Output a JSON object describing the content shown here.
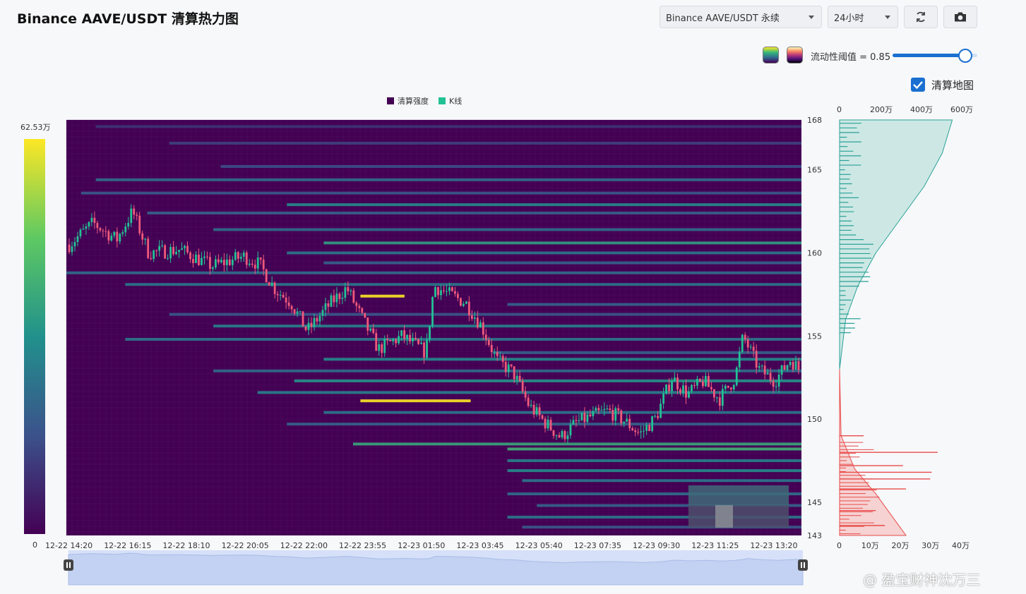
{
  "title": "Binance AAVE/USDT 清算热力图",
  "controls": {
    "symbol": "Binance AAVE/USDT 永续",
    "period": "24小时",
    "threshold_label": "流动性阈值 = 0.85",
    "threshold_value": 0.85,
    "map_label": "清算地图",
    "map_checked": true
  },
  "icons": {
    "refresh": "refresh-icon",
    "camera": "camera-icon",
    "checkbox": "checkmark-icon"
  },
  "watermark": "@ 盈宝财神沈万三",
  "colors": {
    "heat_bg": "#440154",
    "candle_up": "#23c294",
    "candle_down": "#ef5a7a",
    "short_profile": "#2aa198",
    "long_profile": "#e84b4b"
  },
  "chart_data": {
    "type": "heatmap",
    "legend": [
      {
        "name": "清算强度",
        "color": "#440154"
      },
      {
        "name": "K线",
        "color": "#23c294"
      }
    ],
    "colorbar": {
      "max_label": "62.53万",
      "min_label": "0",
      "max": 625300,
      "min": 0
    },
    "x_ticks": [
      "12-22 14:20",
      "12-22 16:15",
      "12-22 18:10",
      "12-22 20:05",
      "12-22 22:00",
      "12-22 23:55",
      "12-23 01:50",
      "12-23 03:45",
      "12-23 05:40",
      "12-23 07:35",
      "12-23 09:30",
      "12-23 11:25",
      "12-23 13:20"
    ],
    "y_ticks": [
      168,
      165,
      160,
      155,
      150,
      145,
      143
    ],
    "ylim": [
      143,
      168
    ],
    "price_key_points": [
      {
        "t": 0,
        "p": 160.5
      },
      {
        "t": 3,
        "p": 161.8
      },
      {
        "t": 6,
        "p": 160.8
      },
      {
        "t": 8,
        "p": 162.5
      },
      {
        "t": 10,
        "p": 160.0
      },
      {
        "t": 14,
        "p": 160.2
      },
      {
        "t": 18,
        "p": 159.2
      },
      {
        "t": 22,
        "p": 159.8
      },
      {
        "t": 24,
        "p": 159.3
      },
      {
        "t": 26,
        "p": 157.8
      },
      {
        "t": 28,
        "p": 157.0
      },
      {
        "t": 30,
        "p": 155.3
      },
      {
        "t": 33,
        "p": 157.0
      },
      {
        "t": 35,
        "p": 157.9
      },
      {
        "t": 37,
        "p": 156.0
      },
      {
        "t": 39,
        "p": 154.2
      },
      {
        "t": 42,
        "p": 155.0
      },
      {
        "t": 45,
        "p": 154.0
      },
      {
        "t": 46,
        "p": 158.0
      },
      {
        "t": 48,
        "p": 157.5
      },
      {
        "t": 50,
        "p": 157.0
      },
      {
        "t": 52,
        "p": 155.6
      },
      {
        "t": 54,
        "p": 153.5
      },
      {
        "t": 56,
        "p": 152.8
      },
      {
        "t": 58,
        "p": 150.8
      },
      {
        "t": 60,
        "p": 149.8
      },
      {
        "t": 62,
        "p": 148.9
      },
      {
        "t": 64,
        "p": 149.8
      },
      {
        "t": 66,
        "p": 150.2
      },
      {
        "t": 68,
        "p": 150.5
      },
      {
        "t": 70,
        "p": 149.9
      },
      {
        "t": 72,
        "p": 149.1
      },
      {
        "t": 74,
        "p": 150.1
      },
      {
        "t": 76,
        "p": 152.5
      },
      {
        "t": 78,
        "p": 151.5
      },
      {
        "t": 80,
        "p": 152.3
      },
      {
        "t": 82,
        "p": 151.2
      },
      {
        "t": 84,
        "p": 152.5
      },
      {
        "t": 85,
        "p": 155.0
      },
      {
        "t": 87,
        "p": 153.0
      },
      {
        "t": 89,
        "p": 152.3
      },
      {
        "t": 91,
        "p": 153.6
      },
      {
        "t": 92,
        "p": 153.0
      }
    ],
    "liquidation_bands": [
      {
        "price": 167.6,
        "from": 0.04,
        "intensity": 0.2
      },
      {
        "price": 166.6,
        "from": 0.14,
        "intensity": 0.25
      },
      {
        "price": 165.2,
        "from": 0.21,
        "intensity": 0.3
      },
      {
        "price": 164.4,
        "from": 0.04,
        "intensity": 0.45
      },
      {
        "price": 163.6,
        "from": 0.02,
        "intensity": 0.35
      },
      {
        "price": 162.9,
        "from": 0.3,
        "intensity": 0.6
      },
      {
        "price": 162.4,
        "from": 0.11,
        "intensity": 0.4
      },
      {
        "price": 161.4,
        "from": 0.2,
        "intensity": 0.45
      },
      {
        "price": 160.6,
        "from": 0.35,
        "intensity": 0.7
      },
      {
        "price": 160.0,
        "from": 0.3,
        "intensity": 0.5
      },
      {
        "price": 159.4,
        "from": 0.35,
        "intensity": 0.4
      },
      {
        "price": 158.8,
        "from": 0.0,
        "intensity": 0.45
      },
      {
        "price": 158.1,
        "from": 0.08,
        "intensity": 0.5
      },
      {
        "price": 157.4,
        "from": 0.4,
        "intensity": 1.0,
        "to": 0.46
      },
      {
        "price": 156.9,
        "from": 0.6,
        "intensity": 0.4
      },
      {
        "price": 156.3,
        "from": 0.14,
        "intensity": 0.35
      },
      {
        "price": 155.6,
        "from": 0.2,
        "intensity": 0.55
      },
      {
        "price": 154.8,
        "from": 0.08,
        "intensity": 0.5
      },
      {
        "price": 154.0,
        "from": 0.58,
        "intensity": 0.4
      },
      {
        "price": 153.6,
        "from": 0.35,
        "intensity": 0.6
      },
      {
        "price": 152.9,
        "from": 0.2,
        "intensity": 0.45
      },
      {
        "price": 152.3,
        "from": 0.31,
        "intensity": 0.65
      },
      {
        "price": 151.6,
        "from": 0.26,
        "intensity": 0.55
      },
      {
        "price": 151.1,
        "from": 0.4,
        "intensity": 1.0,
        "to": 0.55
      },
      {
        "price": 150.4,
        "from": 0.35,
        "intensity": 0.5
      },
      {
        "price": 149.7,
        "from": 0.3,
        "intensity": 0.4
      },
      {
        "price": 148.5,
        "from": 0.39,
        "intensity": 0.75
      },
      {
        "price": 148.2,
        "from": 0.6,
        "intensity": 0.8
      },
      {
        "price": 147.5,
        "from": 0.6,
        "intensity": 0.55
      },
      {
        "price": 146.9,
        "from": 0.6,
        "intensity": 0.6
      },
      {
        "price": 146.3,
        "from": 0.62,
        "intensity": 0.5
      },
      {
        "price": 145.5,
        "from": 0.6,
        "intensity": 0.45
      },
      {
        "price": 144.8,
        "from": 0.64,
        "intensity": 0.4
      },
      {
        "price": 144.1,
        "from": 0.6,
        "intensity": 0.5
      },
      {
        "price": 143.5,
        "from": 0.62,
        "intensity": 0.35
      }
    ],
    "short_profile": {
      "axis_ticks": [
        "0",
        "200万",
        "400万",
        "600万"
      ],
      "axis_max": 6000000,
      "cumulative": [
        {
          "p": 168,
          "v": 5600000
        },
        {
          "p": 166,
          "v": 5100000
        },
        {
          "p": 164,
          "v": 4200000
        },
        {
          "p": 162,
          "v": 3000000
        },
        {
          "p": 160,
          "v": 1800000
        },
        {
          "p": 158,
          "v": 900000
        },
        {
          "p": 156,
          "v": 300000
        },
        {
          "p": 153,
          "v": 0
        }
      ]
    },
    "long_profile": {
      "axis_ticks": [
        "0",
        "10万",
        "20万",
        "30万",
        "40万"
      ],
      "axis_max": 400000,
      "cumulative": [
        {
          "p": 153,
          "v": 0
        },
        {
          "p": 149,
          "v": 5000
        },
        {
          "p": 147,
          "v": 50000
        },
        {
          "p": 145.5,
          "v": 120000
        },
        {
          "p": 144,
          "v": 180000
        },
        {
          "p": 143,
          "v": 220000
        }
      ],
      "bars": [
        {
          "p": 149,
          "v": 80000
        },
        {
          "p": 148,
          "v": 325000
        },
        {
          "p": 147.2,
          "v": 210000
        },
        {
          "p": 146.8,
          "v": 305000
        },
        {
          "p": 146.4,
          "v": 300000
        },
        {
          "p": 145.8,
          "v": 220000
        },
        {
          "p": 144.5,
          "v": 120000
        },
        {
          "p": 143.6,
          "v": 150000
        }
      ]
    }
  }
}
